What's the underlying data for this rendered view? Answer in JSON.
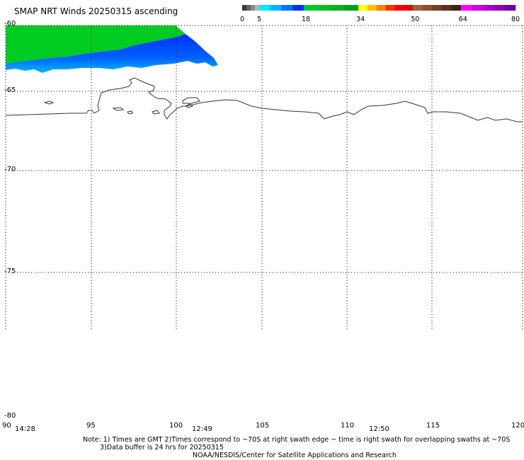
{
  "title": "SMAP NRT Winds 20250315 ascending",
  "colorbar": {
    "tick_labels": [
      "0",
      "5",
      "18",
      "34",
      "50",
      "64",
      "80"
    ],
    "segments": [
      {
        "from": 0,
        "to": 5,
        "colors": [
          "#3a3a3a",
          "#606060",
          "#8a8a8a",
          "#b4b4b4"
        ]
      },
      {
        "from": 5,
        "to": 18,
        "colors": [
          "#00e8ff",
          "#00b4ff",
          "#0070ff",
          "#0030ff"
        ]
      },
      {
        "from": 18,
        "to": 34,
        "colors": [
          "#00c828",
          "#00c020",
          "#00b420",
          "#00a018"
        ]
      },
      {
        "from": 34,
        "to": 50,
        "colors": [
          "#ffff00",
          "#ffc000",
          "#ff8000",
          "#ff3000",
          "#ff0000",
          "#e80000"
        ]
      },
      {
        "from": 50,
        "to": 64,
        "colors": [
          "#a06040",
          "#8a4c30",
          "#704028",
          "#5a3020",
          "#402018"
        ]
      },
      {
        "from": 64,
        "to": 80,
        "colors": [
          "#ff00ff",
          "#d000e0",
          "#b000c8",
          "#9000b0",
          "#7000a0"
        ]
      }
    ]
  },
  "map": {
    "lat_labels": [
      "-60",
      "-65",
      "-70",
      "-75",
      "-80"
    ],
    "lon_labels": [
      "90",
      "95",
      "100",
      "105",
      "110",
      "115",
      "120"
    ],
    "time_labels": [
      "14:28",
      "12:49",
      "12:50"
    ],
    "lon_range": [
      90,
      120
    ],
    "lat_range": [
      -80,
      -60
    ],
    "wind_colors": {
      "green": "#00cc22",
      "blue": "#0030ff",
      "light_blue": "#00a8ff",
      "coast": "#333333"
    }
  },
  "notes": {
    "line1": "Note: 1) Times are GMT 2)Times correspond to ~70S at right swath edge ~ time is right swath for overlapping swaths at ~70S",
    "line2": "3)Data buffer is 24 hrs for 20250315",
    "line3": "NOAA/NESDIS/Center for Satellite Applications and Research"
  }
}
